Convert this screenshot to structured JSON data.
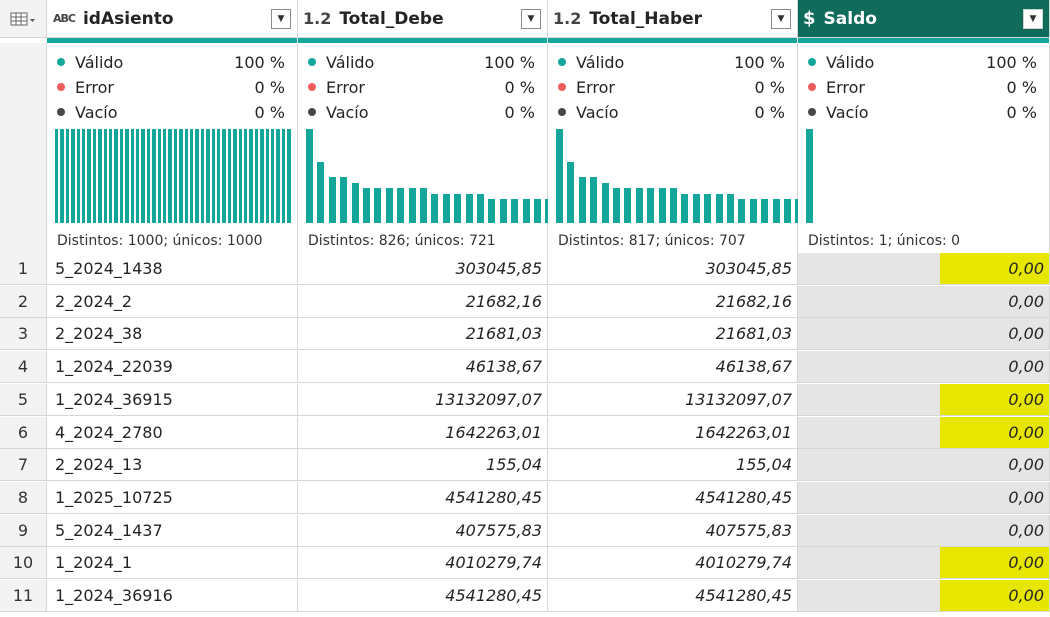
{
  "columns": [
    {
      "name": "idAsiento",
      "type": "ABC",
      "selected": false,
      "quality": {
        "valid_label": "Válido",
        "valid_pct": "100 %",
        "error_label": "Error",
        "error_pct": "0 %",
        "empty_label": "Vacío",
        "empty_pct": "0 %"
      },
      "distinct": "Distintos: 1000; únicos: 1000"
    },
    {
      "name": "Total_Debe",
      "type": "1.2",
      "selected": false,
      "quality": {
        "valid_label": "Válido",
        "valid_pct": "100 %",
        "error_label": "Error",
        "error_pct": "0 %",
        "empty_label": "Vacío",
        "empty_pct": "0 %"
      },
      "distinct": "Distintos: 826; únicos: 721"
    },
    {
      "name": "Total_Haber",
      "type": "1.2",
      "selected": false,
      "quality": {
        "valid_label": "Válido",
        "valid_pct": "100 %",
        "error_label": "Error",
        "error_pct": "0 %",
        "empty_label": "Vacío",
        "empty_pct": "0 %"
      },
      "distinct": "Distintos: 817; únicos: 707"
    },
    {
      "name": "Saldo",
      "type": "$",
      "selected": true,
      "quality": {
        "valid_label": "Válido",
        "valid_pct": "100 %",
        "error_label": "Error",
        "error_pct": "0 %",
        "empty_label": "Vacío",
        "empty_pct": "0 %"
      },
      "distinct": "Distintos: 1; únicos: 0"
    }
  ],
  "distribution": [
    [
      1,
      1,
      1,
      1,
      1,
      1,
      1,
      1,
      1,
      1,
      1,
      1,
      1,
      1,
      1,
      1,
      1,
      1,
      1,
      1,
      1,
      1,
      1,
      1,
      1,
      1,
      1,
      1,
      1,
      1,
      1,
      1,
      1,
      1,
      1,
      1,
      1,
      1,
      1,
      1,
      1,
      1,
      1,
      1
    ],
    [
      1,
      0.65,
      0.49,
      0.49,
      0.43,
      0.37,
      0.37,
      0.37,
      0.37,
      0.37,
      0.37,
      0.31,
      0.31,
      0.31,
      0.31,
      0.31,
      0.26,
      0.26,
      0.26,
      0.26,
      0.26,
      0.26
    ],
    [
      1,
      0.65,
      0.49,
      0.49,
      0.43,
      0.37,
      0.37,
      0.37,
      0.37,
      0.37,
      0.37,
      0.31,
      0.31,
      0.31,
      0.31,
      0.31,
      0.26,
      0.26,
      0.26,
      0.26,
      0.26,
      0.26
    ],
    [
      1
    ]
  ],
  "colors": {
    "valid": "#14a69a",
    "error": "#f05c5c",
    "empty": "#474747",
    "accent": "#14a69a",
    "selected_header": "#116b5b",
    "highlight": "#e6e600"
  },
  "rows": [
    {
      "n": "1",
      "id": "5_2024_1438",
      "debe": "303045,85",
      "haber": "303045,85",
      "saldo": "0,00",
      "highlight": true
    },
    {
      "n": "2",
      "id": "2_2024_2",
      "debe": "21682,16",
      "haber": "21682,16",
      "saldo": "0,00",
      "highlight": false
    },
    {
      "n": "3",
      "id": "2_2024_38",
      "debe": "21681,03",
      "haber": "21681,03",
      "saldo": "0,00",
      "highlight": false
    },
    {
      "n": "4",
      "id": "1_2024_22039",
      "debe": "46138,67",
      "haber": "46138,67",
      "saldo": "0,00",
      "highlight": false
    },
    {
      "n": "5",
      "id": "1_2024_36915",
      "debe": "13132097,07",
      "haber": "13132097,07",
      "saldo": "0,00",
      "highlight": true
    },
    {
      "n": "6",
      "id": "4_2024_2780",
      "debe": "1642263,01",
      "haber": "1642263,01",
      "saldo": "0,00",
      "highlight": true
    },
    {
      "n": "7",
      "id": "2_2024_13",
      "debe": "155,04",
      "haber": "155,04",
      "saldo": "0,00",
      "highlight": false
    },
    {
      "n": "8",
      "id": "1_2025_10725",
      "debe": "4541280,45",
      "haber": "4541280,45",
      "saldo": "0,00",
      "highlight": false
    },
    {
      "n": "9",
      "id": "5_2024_1437",
      "debe": "407575,83",
      "haber": "407575,83",
      "saldo": "0,00",
      "highlight": false
    },
    {
      "n": "10",
      "id": "1_2024_1",
      "debe": "4010279,74",
      "haber": "4010279,74",
      "saldo": "0,00",
      "highlight": true
    },
    {
      "n": "11",
      "id": "1_2024_36916",
      "debe": "4541280,45",
      "haber": "4541280,45",
      "saldo": "0,00",
      "highlight": true
    }
  ]
}
